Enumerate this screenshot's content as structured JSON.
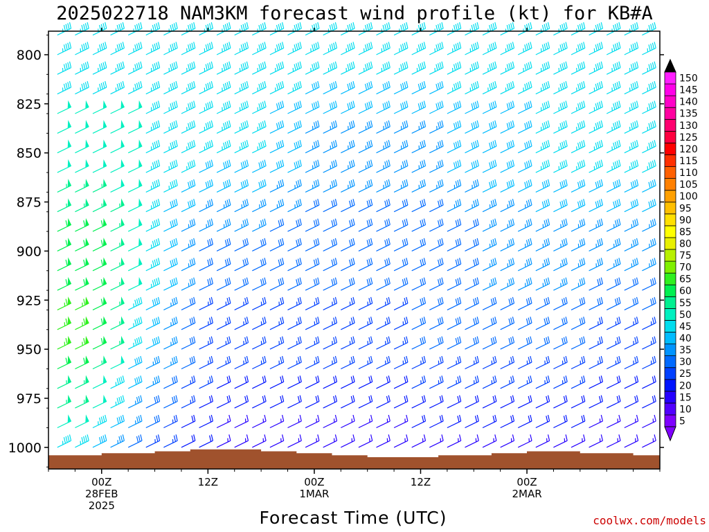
{
  "title": "2025022718 NAM3KM forecast wind profile (kt) for KB#A",
  "xlabel": "Forecast Time (UTC)",
  "credit": "coolwx.com/models",
  "colors": {
    "terrain": "#a0522d",
    "frame": "#000000"
  },
  "chart_data": {
    "type": "wind_barb_time_height",
    "title": "2025022718 NAM3KM forecast wind profile (kt) for KB#A",
    "xlabel": "Forecast Time (UTC)",
    "ylabel": "",
    "units": "kt",
    "y_axis": {
      "quantity": "pressure (mb)",
      "range": [
        1011,
        788
      ],
      "ticks": [
        800,
        825,
        850,
        875,
        900,
        925,
        950,
        975,
        1000
      ]
    },
    "x_axis": {
      "start": "2025-02-27T18Z",
      "end": "2025-03-02T15Z",
      "ticks": [
        {
          "lines": [
            "00Z",
            "28FEB",
            "2025"
          ]
        },
        {
          "lines": [
            "12Z"
          ]
        },
        {
          "lines": [
            "00Z",
            "1MAR"
          ]
        },
        {
          "lines": [
            "12Z"
          ]
        },
        {
          "lines": [
            "00Z",
            "2MAR"
          ]
        }
      ]
    },
    "times_hours_from_start": [
      1,
      3,
      5,
      7,
      9,
      11,
      13,
      15,
      17,
      19,
      21,
      23,
      25,
      27,
      29,
      31,
      33,
      35,
      37,
      39,
      41,
      43,
      45,
      47,
      49,
      51,
      53,
      55,
      57,
      59,
      61,
      63,
      65,
      67
    ],
    "surface_pressure_mb": [
      1004,
      1004,
      1004,
      1003,
      1003,
      1003,
      1002,
      1002,
      1001,
      1001,
      1001,
      1001,
      1002,
      1002,
      1003,
      1003,
      1004,
      1004,
      1005,
      1005,
      1005,
      1005,
      1004,
      1004,
      1004,
      1003,
      1003,
      1002,
      1002,
      1002,
      1003,
      1003,
      1003,
      1004
    ],
    "wind_speed_kt": {
      "800": [
        45,
        45,
        45,
        45,
        45,
        45,
        45,
        45,
        45,
        45,
        45,
        45,
        45,
        45,
        45,
        45,
        45,
        45,
        45,
        45,
        45,
        45,
        45,
        45,
        45,
        45,
        45,
        45,
        45,
        45,
        45,
        45,
        45,
        45
      ],
      "850": [
        50,
        50,
        50,
        50,
        50,
        45,
        45,
        45,
        45,
        45,
        45,
        45,
        40,
        40,
        35,
        35,
        35,
        35,
        35,
        35,
        35,
        35,
        40,
        40,
        40,
        40,
        40,
        45,
        45,
        45,
        45,
        45,
        45,
        45
      ],
      "900": [
        60,
        60,
        60,
        55,
        50,
        45,
        40,
        35,
        30,
        30,
        30,
        30,
        30,
        30,
        30,
        30,
        30,
        30,
        30,
        30,
        30,
        30,
        30,
        30,
        35,
        35,
        35,
        35,
        35,
        35,
        35,
        35,
        35,
        35
      ],
      "950": [
        65,
        65,
        60,
        55,
        45,
        40,
        35,
        30,
        25,
        25,
        25,
        25,
        25,
        25,
        25,
        25,
        25,
        25,
        25,
        25,
        30,
        30,
        30,
        30,
        30,
        30,
        30,
        30,
        30,
        30,
        25,
        25,
        25,
        25
      ],
      "1000": [
        45,
        45,
        40,
        35,
        30,
        25,
        25,
        20,
        20,
        15,
        15,
        15,
        15,
        15,
        15,
        15,
        15,
        15,
        15,
        15,
        15,
        15,
        15,
        15,
        15,
        15,
        15,
        15,
        15,
        15,
        15,
        15,
        15,
        15
      ]
    },
    "legend": {
      "title": "",
      "values": [
        5,
        10,
        15,
        20,
        25,
        30,
        35,
        40,
        45,
        50,
        55,
        60,
        65,
        70,
        75,
        80,
        85,
        90,
        95,
        100,
        105,
        110,
        115,
        120,
        125,
        130,
        135,
        140,
        145,
        150
      ],
      "colors": [
        "#7f00ff",
        "#5200ff",
        "#2600ff",
        "#0014ff",
        "#0040ff",
        "#006aff",
        "#0094ff",
        "#00bcff",
        "#00ddee",
        "#00f0c0",
        "#00f090",
        "#00f050",
        "#30f020",
        "#80f000",
        "#b8f000",
        "#e8f000",
        "#ffff00",
        "#ffe000",
        "#ffc000",
        "#ffa000",
        "#ff8000",
        "#ff6000",
        "#ff3000",
        "#ff0000",
        "#ff0040",
        "#ff0070",
        "#ff00a0",
        "#ff00c8",
        "#ff00e8",
        "#ff20ff"
      ]
    }
  }
}
